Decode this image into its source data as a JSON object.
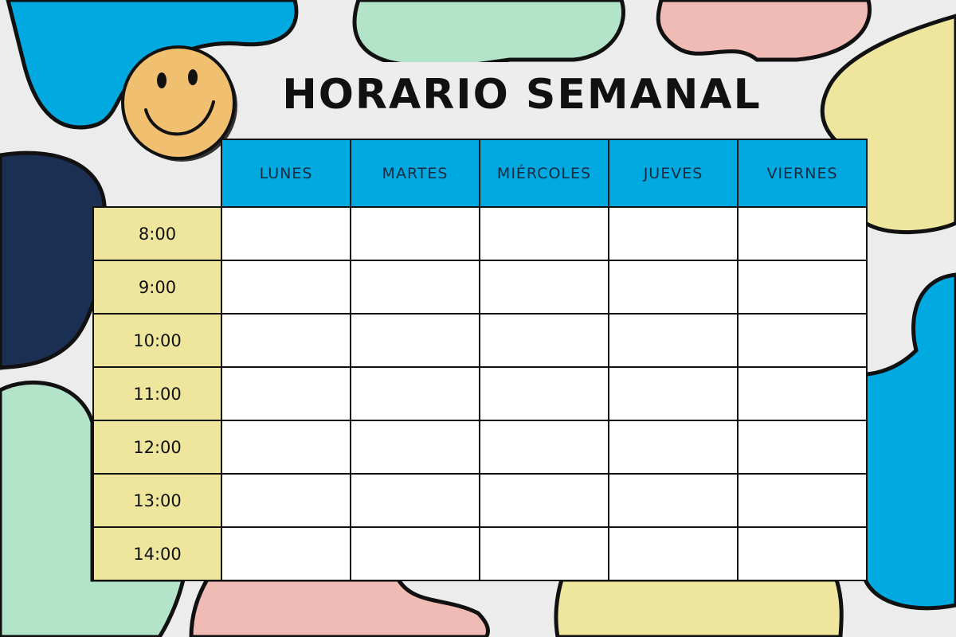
{
  "title": "HORARIO SEMANAL",
  "days": [
    "LUNES",
    "MARTES",
    "MIÉRCOLES",
    "JUEVES",
    "VIERNES"
  ],
  "times": [
    "8:00",
    "9:00",
    "10:00",
    "11:00",
    "12:00",
    "13:00",
    "14:00"
  ],
  "colors": {
    "header": "#00a9e0",
    "time_column": "#efe69e",
    "blue": "#00a9e0",
    "green": "#b3e3c8",
    "pink": "#f0bab5",
    "yellow": "#efe69e",
    "navy": "#1b2f52",
    "smiley": "#f0c070"
  },
  "icons": {
    "decoration": "smiley-face-icon"
  }
}
